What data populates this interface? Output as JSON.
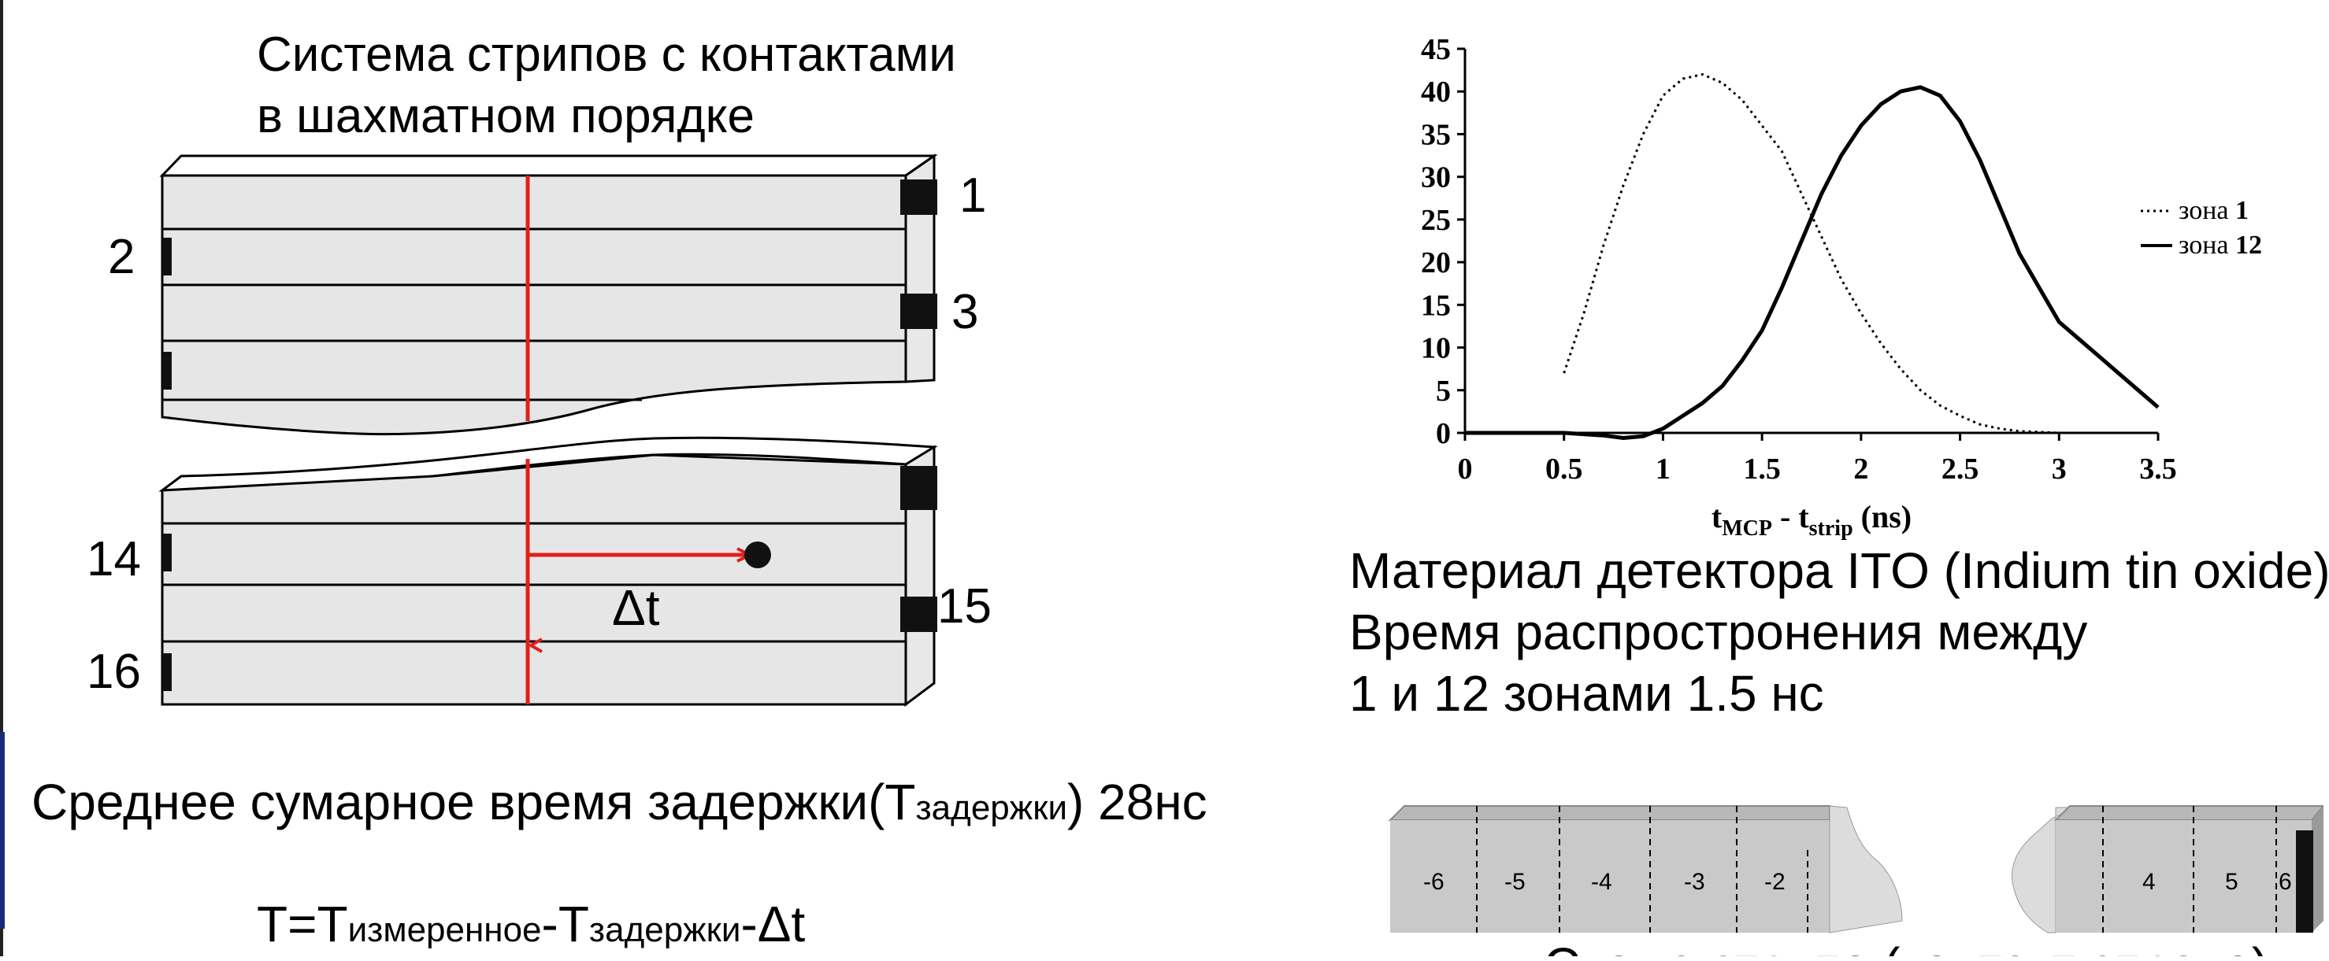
{
  "left": {
    "title_line1": "Система стрипов с контактами",
    "title_line2": "в шахматном порядке",
    "strip_numbers": {
      "n1": "1",
      "n2": "2",
      "n3": "3",
      "n14": "14",
      "n15": "15",
      "n16": "16"
    },
    "delta_t": "Δt",
    "delay_text": "Среднее сумарное время задержки(",
    "delay_T": "T",
    "delay_sub": "задержки",
    "delay_value": ") 28нс",
    "formula": {
      "T": "T=T",
      "sub1": "измеренное",
      "minus1": "-T",
      "sub2": "задержки",
      "tail": "-Δt"
    }
  },
  "right": {
    "material_line1": "Материал детектора ITO (Indium tin oxide)",
    "material_line2": "Время распростронения между",
    "material_line3": "1 и 12 зонами 1.5 нс",
    "bottom_caption": "Схема стрипо (контакт справо)",
    "strip_zone_labels": [
      "-6",
      "-5",
      "-4",
      "-3",
      "-2",
      "4",
      "5",
      "6"
    ]
  },
  "chart_data": {
    "type": "line",
    "xlabel_main": "t",
    "xlabel_sub1": "MCP",
    "xlabel_mid": " - t",
    "xlabel_sub2": "strip",
    "xlabel_unit": " (ns)",
    "xlim": [
      0,
      3.5
    ],
    "ylim": [
      0,
      45
    ],
    "x_ticks": [
      "0",
      "0.5",
      "1",
      "1.5",
      "2",
      "2.5",
      "3",
      "3.5"
    ],
    "y_ticks": [
      "0",
      "5",
      "10",
      "15",
      "20",
      "25",
      "30",
      "35",
      "40",
      "45"
    ],
    "legend_placement": "right",
    "series": [
      {
        "name": "зона 1",
        "name_prefix": "зона ",
        "name_num": "1",
        "style": "dotted",
        "x": [
          0.5,
          0.6,
          0.7,
          0.8,
          0.9,
          1.0,
          1.1,
          1.2,
          1.3,
          1.4,
          1.5,
          1.6,
          1.7,
          1.8,
          1.9,
          2.0,
          2.1,
          2.2,
          2.3,
          2.4,
          2.5,
          2.6,
          2.7,
          2.8,
          2.9,
          3.0,
          3.2,
          3.5
        ],
        "y": [
          7,
          14,
          22,
          29,
          35,
          39.5,
          41.5,
          42,
          41,
          39,
          36,
          33,
          28,
          23,
          18,
          14,
          10.5,
          7.5,
          5,
          3.2,
          2,
          1,
          0.5,
          0.2,
          0.1,
          0,
          0,
          0
        ]
      },
      {
        "name": "зона 12",
        "name_prefix": "зона ",
        "name_num": "12",
        "style": "solid",
        "x": [
          0,
          0.5,
          0.7,
          0.8,
          0.9,
          1.0,
          1.1,
          1.2,
          1.3,
          1.4,
          1.5,
          1.6,
          1.7,
          1.8,
          1.9,
          2.0,
          2.1,
          2.2,
          2.3,
          2.4,
          2.5,
          2.6,
          2.7,
          2.8,
          2.9,
          3.0,
          3.1,
          3.2,
          3.3,
          3.4,
          3.5
        ],
        "y": [
          0,
          0,
          -0.3,
          -0.6,
          -0.4,
          0.5,
          2,
          3.5,
          5.5,
          8.5,
          12,
          17,
          22.5,
          28,
          32.5,
          36,
          38.5,
          40,
          40.5,
          39.5,
          36.5,
          32,
          26.5,
          21,
          17,
          13,
          11,
          9,
          7,
          5,
          3
        ]
      }
    ]
  }
}
